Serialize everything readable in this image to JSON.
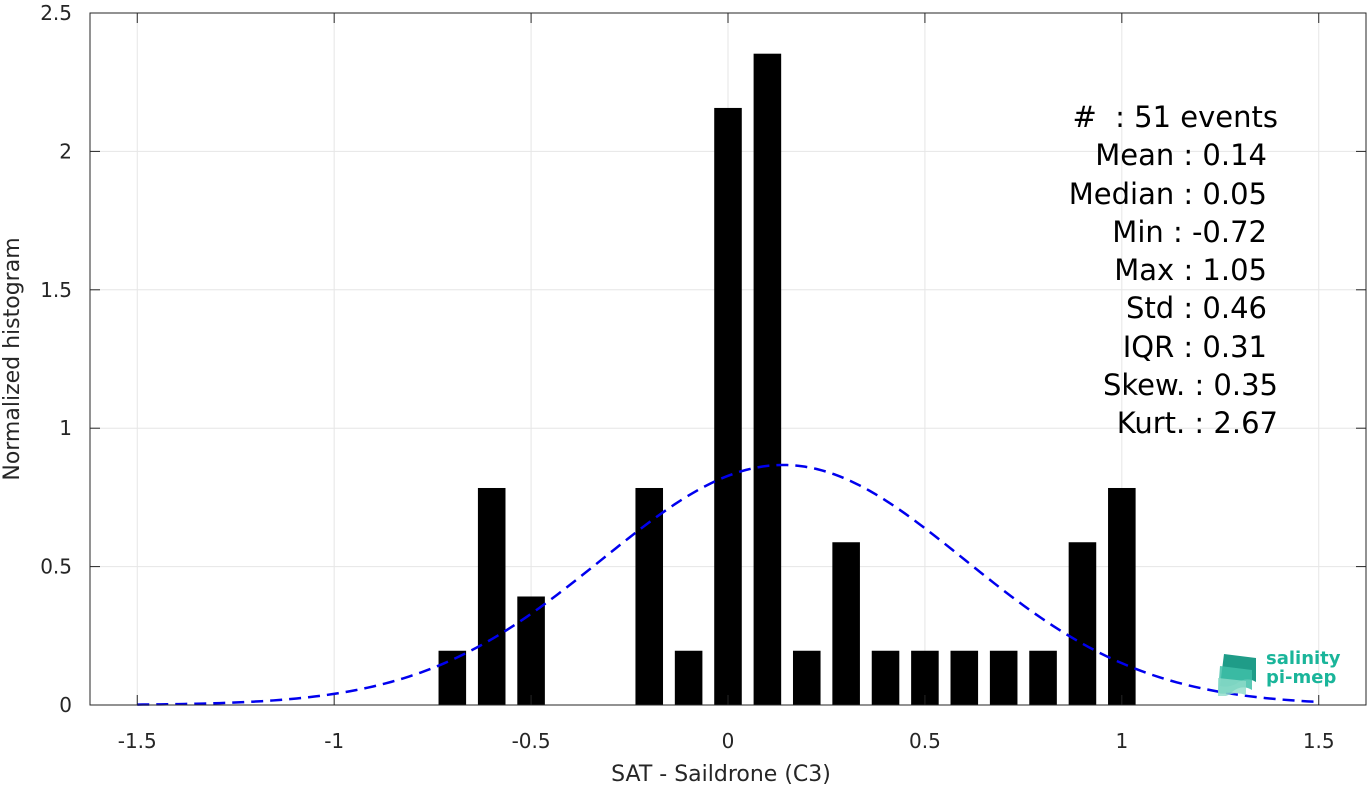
{
  "chart_data": {
    "type": "bar",
    "xlabel": "SAT - Saildrone (C3)",
    "ylabel": "Normalized histogram",
    "xlim": [
      -1.62,
      1.62
    ],
    "ylim": [
      0,
      2.5
    ],
    "xticks": [
      "-1.5",
      "-1",
      "-0.5",
      "0",
      "0.5",
      "1",
      "1.5"
    ],
    "xtick_values": [
      -1.5,
      -1,
      -0.5,
      0,
      0.5,
      1,
      1.5
    ],
    "yticks": [
      "0",
      "0.5",
      "1",
      "1.5",
      "2",
      "2.5"
    ],
    "ytick_values": [
      0,
      0.5,
      1,
      1.5,
      2,
      2.5
    ],
    "grid": true,
    "bar_color": "#000000",
    "bar_width": 0.07,
    "bars": [
      {
        "x": -0.7,
        "y": 0.196
      },
      {
        "x": -0.6,
        "y": 0.784
      },
      {
        "x": -0.5,
        "y": 0.392
      },
      {
        "x": -0.2,
        "y": 0.784
      },
      {
        "x": -0.1,
        "y": 0.196
      },
      {
        "x": 0.0,
        "y": 2.157
      },
      {
        "x": 0.1,
        "y": 2.353
      },
      {
        "x": 0.2,
        "y": 0.196
      },
      {
        "x": 0.3,
        "y": 0.588
      },
      {
        "x": 0.4,
        "y": 0.196
      },
      {
        "x": 0.5,
        "y": 0.196
      },
      {
        "x": 0.6,
        "y": 0.196
      },
      {
        "x": 0.7,
        "y": 0.196
      },
      {
        "x": 0.8,
        "y": 0.196
      },
      {
        "x": 0.9,
        "y": 0.588
      },
      {
        "x": 1.0,
        "y": 0.784
      }
    ],
    "fit_curve": {
      "style": "dashed",
      "color": "#0000ee",
      "mean": 0.14,
      "std": 0.46,
      "x_range": [
        -1.5,
        1.5
      ]
    }
  },
  "stats": {
    "events": "#  : 51 events",
    "mean": "Mean : 0.14",
    "median": "Median : 0.05",
    "min": "Min : -0.72",
    "max": "Max : 1.05",
    "std": "Std : 0.46",
    "iqr": "IQR : 0.31",
    "skew": "Skew. : 0.35",
    "kurt": "Kurt. : 2.67"
  },
  "logo": {
    "line1": "salinity",
    "line2": "pi-mep",
    "color": "#1ab59a"
  }
}
